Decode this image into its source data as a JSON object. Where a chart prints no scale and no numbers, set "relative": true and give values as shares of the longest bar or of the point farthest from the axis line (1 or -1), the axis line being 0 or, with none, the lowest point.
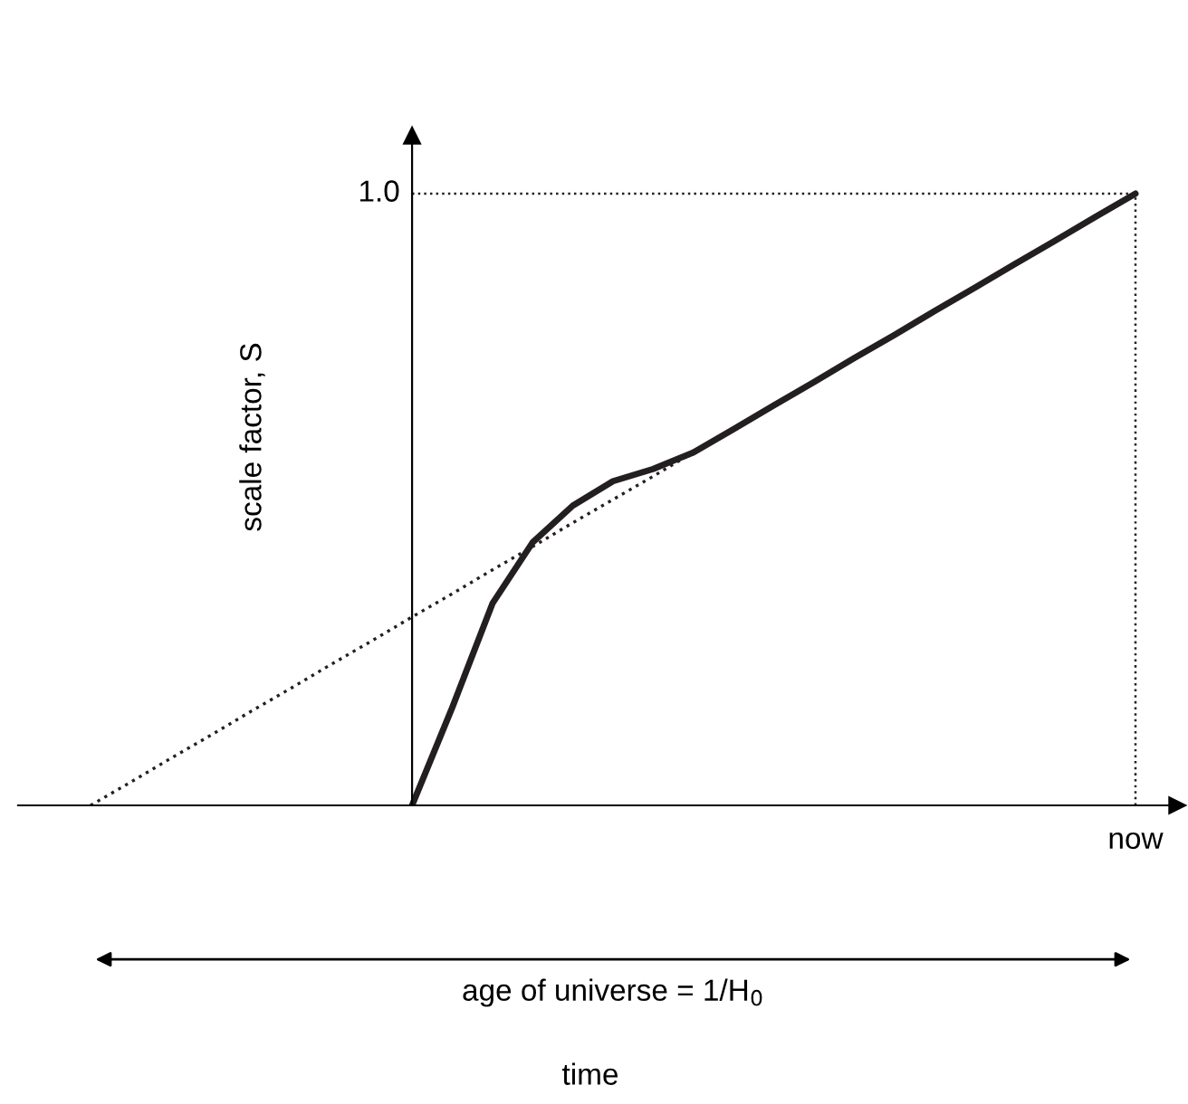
{
  "chart_data": {
    "type": "line",
    "relative": true,
    "ylabel": "scale factor, S",
    "categories": [
      null,
      null,
      null,
      null,
      null,
      null,
      null,
      null,
      null,
      null,
      null,
      null,
      null,
      null,
      null,
      null,
      null,
      null,
      null,
      null,
      null,
      null,
      null,
      null,
      null,
      null,
      null
    ],
    "series": [
      {
        "color": "#231f20",
        "line_style": "dotted",
        "values": [
          0,
          0.038,
          0.077,
          0.115,
          0.154,
          0.192,
          0.231,
          0.269,
          0.308,
          0.346,
          0.385,
          0.423,
          0.462,
          0.5,
          0.538,
          0.577,
          0.615,
          0.654,
          0.692,
          0.731,
          0.769,
          0.808,
          0.846,
          0.885,
          0.923,
          0.962,
          1
        ]
      },
      {
        "color": "#231f20",
        "line_style": "solid",
        "values": [
          null,
          null,
          null,
          null,
          null,
          null,
          null,
          null,
          0,
          0.16,
          0.33,
          0.43,
          0.49,
          0.53,
          0.55,
          0.577,
          0.615,
          0.654,
          0.692,
          0.731,
          0.769,
          0.808,
          0.846,
          0.885,
          0.923,
          0.962,
          1
        ]
      }
    ],
    "ref_lines": [
      {
        "axis": "y",
        "value": 1,
        "label": "1.0",
        "line_style": "dotted"
      },
      {
        "axis": "x",
        "value": "now",
        "line_style": "dotted"
      }
    ],
    "annotations": [
      "age of universe = 1/H$_{0}$",
      "time"
    ]
  }
}
